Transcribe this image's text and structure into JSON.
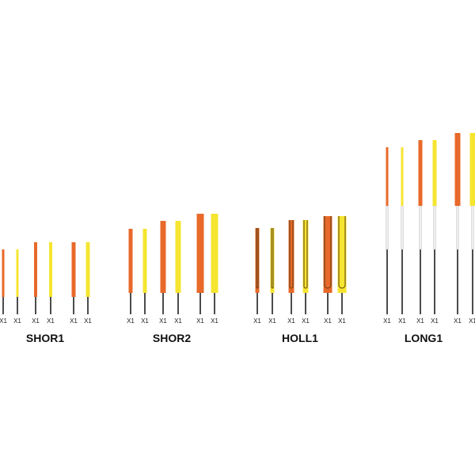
{
  "groups": [
    {
      "label": "SHOR1",
      "items": [
        "X1",
        "X1",
        "X1",
        "X1",
        "X1",
        "X1"
      ]
    },
    {
      "label": "SHOR2",
      "items": [
        "X1",
        "X1",
        "X1",
        "X1",
        "X1",
        "X1"
      ]
    },
    {
      "label": "HOLL1",
      "items": [
        "X1",
        "X1",
        "X1",
        "X1",
        "X1",
        "X1"
      ]
    },
    {
      "label": "LONG1",
      "items": [
        "X1",
        "X1",
        "X1",
        "X1",
        "X1",
        "X1"
      ]
    }
  ]
}
